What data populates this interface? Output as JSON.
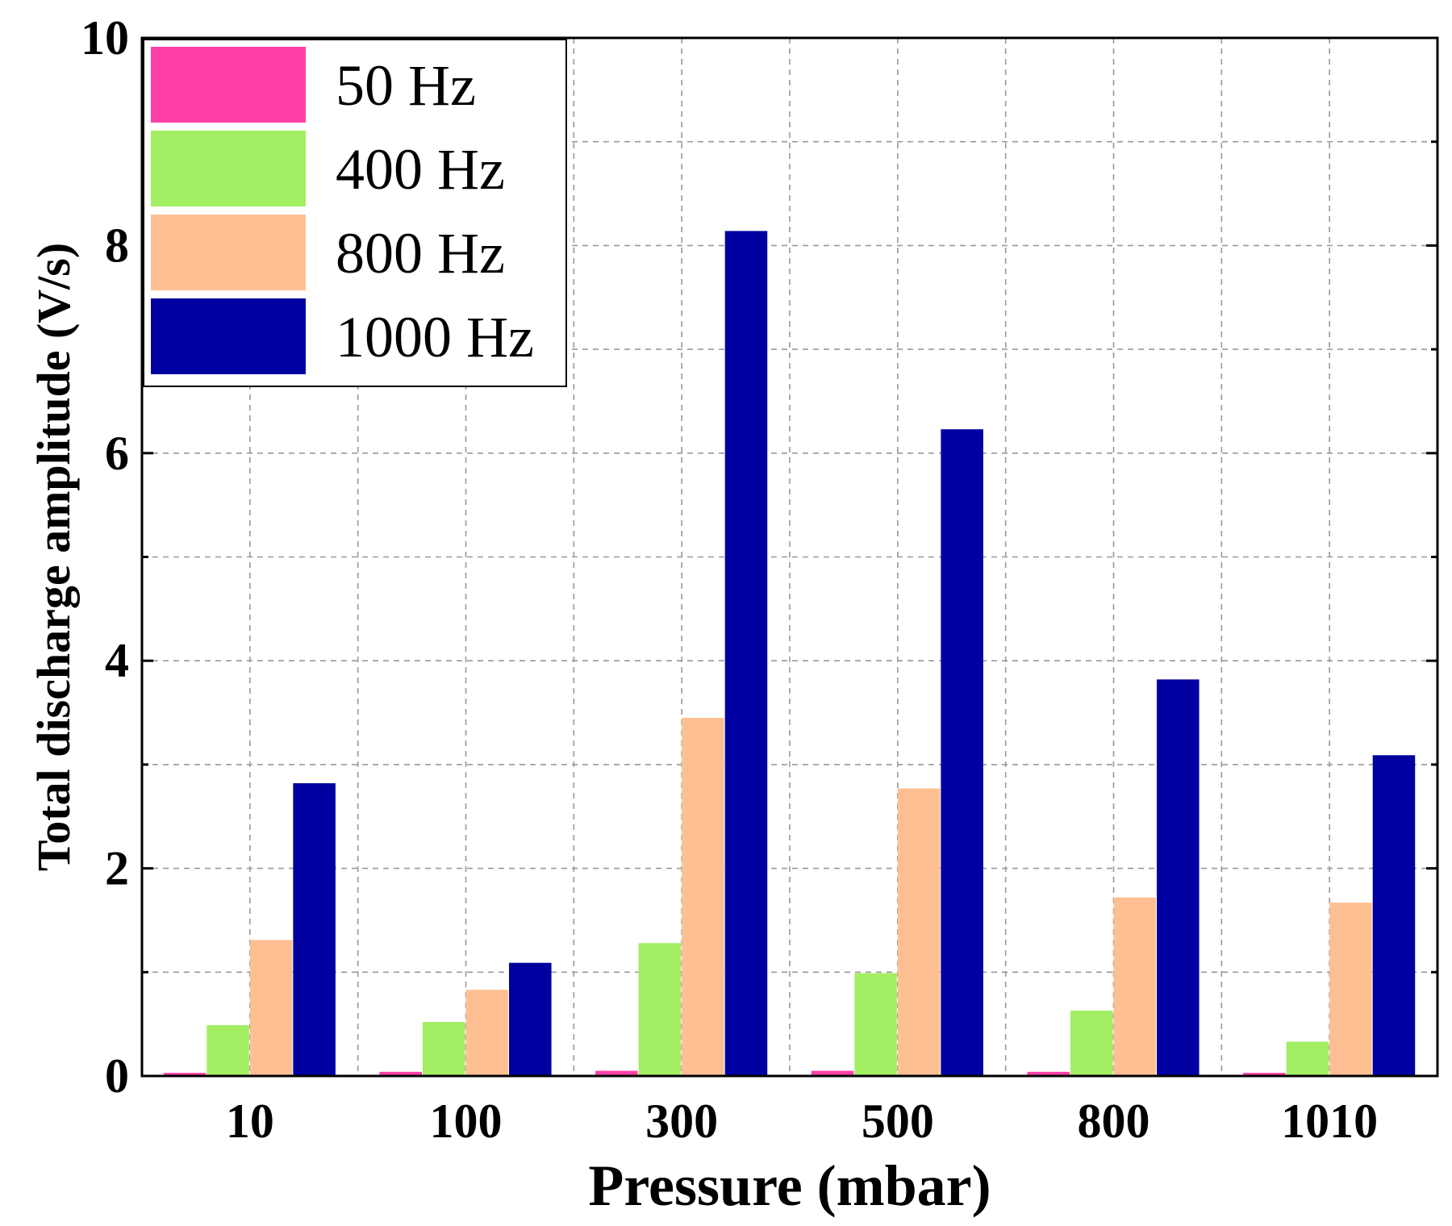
{
  "chart_data": {
    "type": "bar",
    "xlabel": "Pressure (mbar)",
    "ylabel": "Total discharge amplitude (V/s)",
    "categories": [
      "10",
      "100",
      "300",
      "500",
      "800",
      "1010"
    ],
    "ylim": [
      0,
      10
    ],
    "yticks": [
      "0",
      "2",
      "4",
      "6",
      "8",
      "10"
    ],
    "grid": true,
    "legend_position": "top-left",
    "series": [
      {
        "name": "50 Hz",
        "color": "#ff40a8",
        "values": [
          0.03,
          0.04,
          0.05,
          0.05,
          0.04,
          0.03
        ]
      },
      {
        "name": "400 Hz",
        "color": "#a3ee63",
        "values": [
          0.49,
          0.52,
          1.28,
          0.99,
          0.63,
          0.33
        ]
      },
      {
        "name": "800 Hz",
        "color": "#fec092",
        "values": [
          1.31,
          0.83,
          3.45,
          2.77,
          1.72,
          1.67
        ]
      },
      {
        "name": "1000 Hz",
        "color": "#0000a0",
        "values": [
          2.82,
          1.09,
          8.14,
          6.23,
          3.82,
          3.09
        ]
      }
    ]
  }
}
